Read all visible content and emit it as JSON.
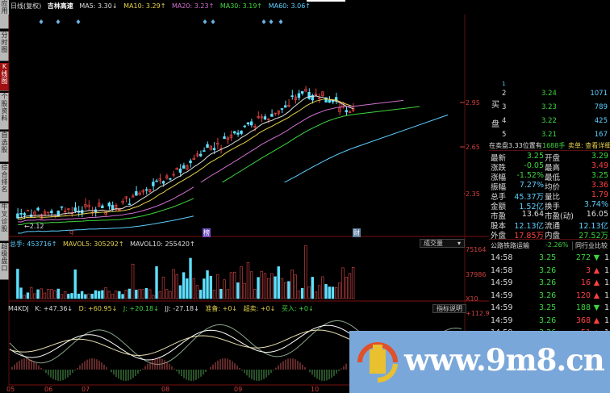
{
  "side_tabs": [
    {
      "label": "应用",
      "active": false
    },
    {
      "label": "分时图",
      "active": false
    },
    {
      "label": "K线图",
      "active": true
    },
    {
      "label": "个股资料",
      "active": false
    },
    {
      "label": "自选股",
      "active": false
    },
    {
      "label": "综合排名",
      "active": false
    },
    {
      "label": "牛叉诊股",
      "active": false
    },
    {
      "label": "超级盘口",
      "active": false
    }
  ],
  "header": {
    "mode": "日线(复权)",
    "stock": "吉林高速",
    "ma5": "MA5: 3.30↓",
    "ma10": "MA10: 3.29↑",
    "ma20": "MA20: 3.23↑",
    "ma30": "MA30: 3.19↑",
    "ma60": "MA60: 3.06↑"
  },
  "price_axis": [
    "2.95",
    "2.65",
    "2.35"
  ],
  "low_label": "←2.12",
  "markers": [
    "q",
    "榜",
    "财"
  ],
  "volume": {
    "total": "总手: 453716↑",
    "mavol5": "MAVOL5: 305292↑",
    "mavol10": "MAVOL10: 255420↑",
    "dropdown": "成交量",
    "axis": [
      "75164",
      "37986",
      "X10"
    ]
  },
  "kdj": {
    "name": "M4KDJ",
    "k": "K: +47.36↓",
    "d": "D: +60.95↓",
    "j": "J: +20.18↓",
    "jj": "JJ: -27.18↓",
    "prep": "准备: +0↓",
    "oversold": "超卖: +0↓",
    "buy": "买入: +0↓",
    "help": "指标说明",
    "axis": "+112.9"
  },
  "dates": [
    "05",
    "06",
    "07",
    "08",
    "09",
    "10"
  ],
  "order_book": {
    "side_label": [
      "买",
      "盘"
    ],
    "rows": [
      {
        "n": "2",
        "price": "3.24",
        "vol": "1071"
      },
      {
        "n": "3",
        "price": "3.23",
        "vol": "789"
      },
      {
        "n": "4",
        "price": "3.22",
        "vol": "425"
      },
      {
        "n": "5",
        "price": "3.21",
        "vol": "167"
      }
    ],
    "notice": "在卖盘3.33位置有",
    "notice_qty": "1688手",
    "notice_link": "卖单: 查看详细"
  },
  "stats": [
    {
      "l1": "最新",
      "v1": "3.25",
      "l2": "开盘",
      "v2": "3.29",
      "c1": "g",
      "c2": "g"
    },
    {
      "l1": "涨跌",
      "v1": "-0.05",
      "l2": "最高",
      "v2": "3.49",
      "c1": "g",
      "c2": "r"
    },
    {
      "l1": "涨幅",
      "v1": "-1.52%",
      "l2": "最低",
      "v2": "3.25",
      "c1": "g",
      "c2": "g"
    },
    {
      "l1": "振幅",
      "v1": "7.27%",
      "l2": "均价",
      "v2": "3.36",
      "c1": "c",
      "c2": "r"
    },
    {
      "l1": "总手",
      "v1": "45.37万",
      "l2": "量比",
      "v2": "1.79",
      "c1": "c",
      "c2": "r"
    },
    {
      "l1": "金额",
      "v1": "1.52亿",
      "l2": "换手",
      "v2": "3.74%",
      "c1": "c",
      "c2": "c"
    },
    {
      "l1": "市盈",
      "v1": "13.64",
      "l2": "市盈(动)",
      "v2": "16.05",
      "c1": "w",
      "c2": "w"
    },
    {
      "l1": "股本",
      "v1": "12.13亿",
      "l2": "流通",
      "v2": "12.13亿",
      "c1": "c",
      "c2": "c"
    },
    {
      "l1": "外盘",
      "v1": "17.85万",
      "l2": "内盘",
      "v2": "27.52万",
      "c1": "r",
      "c2": "g"
    }
  ],
  "industry": {
    "name": "公路铁路运输",
    "change": "-2.26%",
    "compare": "同行业比较"
  },
  "ticks": [
    {
      "time": "14:58",
      "price": "3.25",
      "vol": "272",
      "dir": "down"
    },
    {
      "time": "14:58",
      "price": "3.26",
      "vol": "3",
      "dir": "up"
    },
    {
      "time": "14:59",
      "price": "3.26",
      "vol": "16",
      "dir": "up"
    },
    {
      "time": "14:59",
      "price": "3.26",
      "vol": "120",
      "dir": "up"
    },
    {
      "time": "14:59",
      "price": "3.25",
      "vol": "188",
      "dir": "down"
    },
    {
      "time": "14:59",
      "price": "3.26",
      "vol": "368",
      "dir": "up"
    },
    {
      "time": "14:59",
      "price": "3.26",
      "vol": "51",
      "dir": "up"
    }
  ],
  "watermark": {
    "text": "www.9m8.cn"
  },
  "colors": {
    "up": "#ff4040",
    "down": "#3ed63e",
    "cyan": "#5ecfff",
    "watermark_bg": "#7aa7d9"
  }
}
